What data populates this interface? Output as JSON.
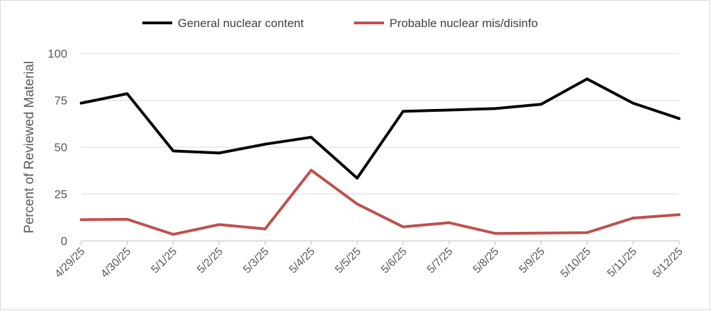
{
  "chart_data": {
    "type": "line",
    "title": "",
    "xlabel": "",
    "ylabel": "Percent of Reviewed Material",
    "ylim": [
      0,
      100
    ],
    "yticks": [
      0,
      25,
      50,
      75,
      100
    ],
    "grid": true,
    "legend_position": "top-center",
    "categories": [
      "4/29/25",
      "4/30/25",
      "5/1/25",
      "5/2/25",
      "5/3/25",
      "5/4/25",
      "5/5/25",
      "5/6/25",
      "5/7/25",
      "5/8/25",
      "5/9/25",
      "5/10/25",
      "5/11/25",
      "5/12/25"
    ],
    "series": [
      {
        "name": "General nuclear content",
        "color": "#000000",
        "values": [
          73.5,
          78.5,
          48,
          46.9,
          51.6,
          55.3,
          33.5,
          69.1,
          69.8,
          70.6,
          72.9,
          86.4,
          73.5,
          65.3
        ]
      },
      {
        "name": "Probable nuclear mis/disinfo",
        "color": "#c0504d",
        "values": [
          11.3,
          11.5,
          3.5,
          8.7,
          6.4,
          37.7,
          19.7,
          7.5,
          9.7,
          4,
          4.2,
          4.4,
          12.2,
          14
        ]
      }
    ]
  }
}
